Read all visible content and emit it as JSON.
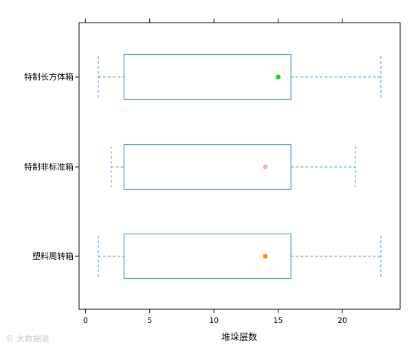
{
  "chart_data": {
    "type": "boxplot",
    "xlabel": "堆垛层数",
    "ylabel": "",
    "title": "",
    "xlim": [
      -0.5,
      24.5
    ],
    "xticks": [
      0,
      5,
      10,
      15,
      20
    ],
    "top_ticks": true,
    "grid": false,
    "legend": "none",
    "box_color": "#3b95d1",
    "categories": [
      "特制长方体箱",
      "特制非标准箱",
      "塑料周转箱"
    ],
    "boxes": [
      {
        "category": "特制长方体箱",
        "whisker_low": 1,
        "q1": 3,
        "q3": 16,
        "whisker_high": 23,
        "median": 15,
        "median_color": "#22cc22"
      },
      {
        "category": "特制非标准箱",
        "whisker_low": 2,
        "q1": 3,
        "q3": 16,
        "whisker_high": 21,
        "median": 14,
        "median_color": "#f2b6c6"
      },
      {
        "category": "塑料周转箱",
        "whisker_low": 1,
        "q1": 3,
        "q3": 16,
        "whisker_high": 23,
        "median": 14,
        "median_color": "#f09a00"
      }
    ]
  },
  "watermark": "大数据说"
}
